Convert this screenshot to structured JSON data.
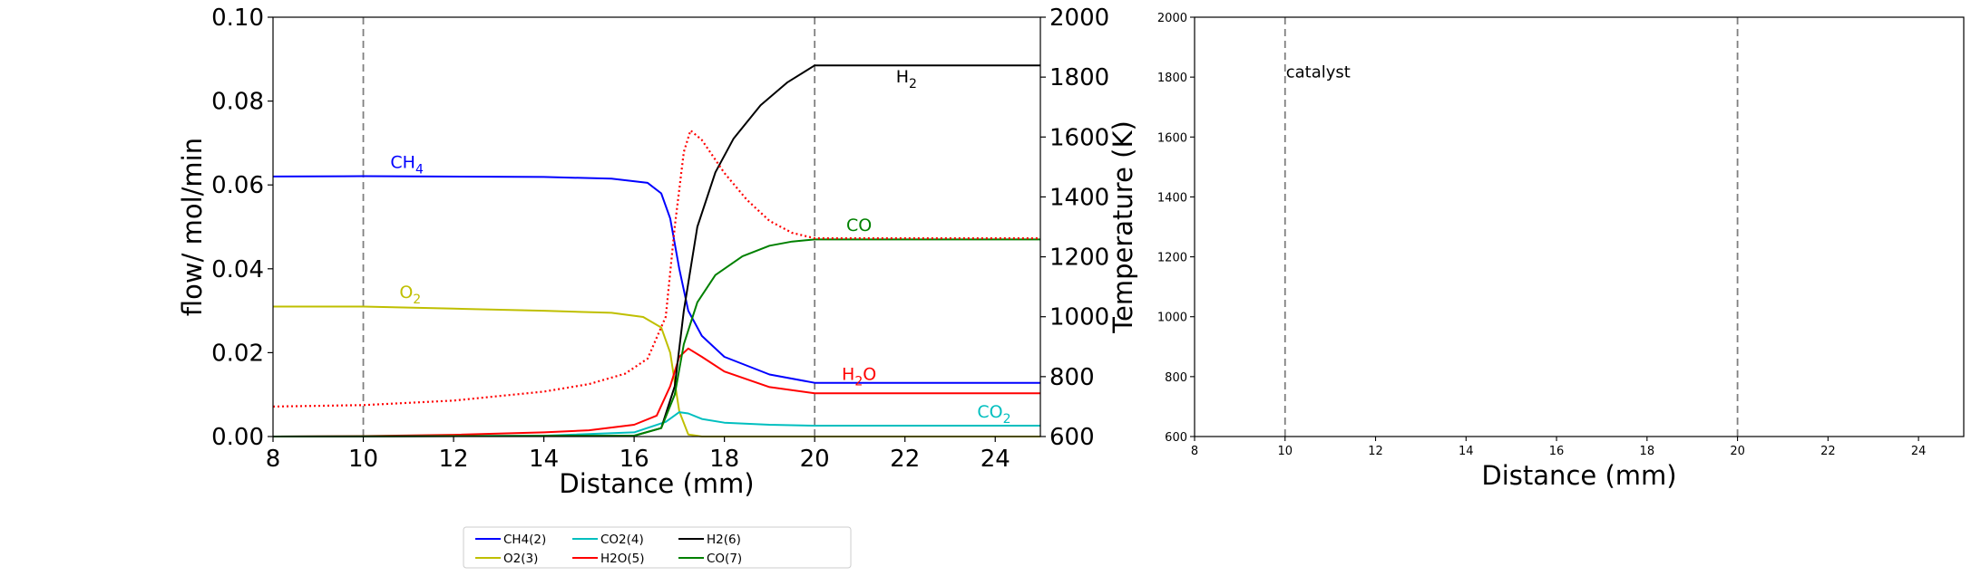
{
  "chart_data": [
    {
      "type": "line",
      "xlabel": "Distance (mm)",
      "ylabel": "flow/ mol/min",
      "y2label": "Temperature (K)",
      "xlim": [
        8,
        25
      ],
      "ylim": [
        0,
        0.1
      ],
      "y2lim": [
        600,
        2000
      ],
      "xticks": [
        "8",
        "10",
        "12",
        "14",
        "16",
        "18",
        "20",
        "22",
        "24"
      ],
      "yticks": [
        "0.00",
        "0.02",
        "0.04",
        "0.06",
        "0.08",
        "0.10"
      ],
      "y2ticks": [
        "600",
        "800",
        "1000",
        "1200",
        "1400",
        "1600",
        "1800",
        "2000"
      ],
      "vlines": [
        10,
        20
      ],
      "series": [
        {
          "name": "CH4(2)",
          "color": "#0000ff",
          "x": [
            8,
            10,
            14,
            15.5,
            16.3,
            16.6,
            16.8,
            17.0,
            17.2,
            17.5,
            18,
            19,
            20,
            25
          ],
          "y": [
            0.062,
            0.0621,
            0.0619,
            0.0615,
            0.0605,
            0.058,
            0.052,
            0.04,
            0.03,
            0.024,
            0.019,
            0.0148,
            0.0128,
            0.0128
          ]
        },
        {
          "name": "O2(3)",
          "color": "#bfbf00",
          "x": [
            8,
            10,
            12,
            14,
            15.5,
            16.2,
            16.6,
            16.8,
            17.0,
            17.2,
            17.5,
            25
          ],
          "y": [
            0.031,
            0.031,
            0.0305,
            0.03,
            0.0295,
            0.0285,
            0.026,
            0.02,
            0.006,
            0.0005,
            0.0,
            0.0
          ]
        },
        {
          "name": "CO2(4)",
          "color": "#00bfbf",
          "x": [
            8,
            14,
            16,
            16.7,
            17.0,
            17.2,
            17.5,
            18,
            19,
            20,
            25
          ],
          "y": [
            0.0,
            0.0002,
            0.001,
            0.0035,
            0.0058,
            0.0055,
            0.0042,
            0.0033,
            0.0028,
            0.0026,
            0.0026
          ]
        },
        {
          "name": "H2O(5)",
          "color": "#ff0000",
          "x": [
            8,
            10,
            12,
            14,
            15,
            16,
            16.5,
            16.8,
            17.0,
            17.2,
            17.5,
            18,
            19,
            20,
            25
          ],
          "y": [
            0.0,
            0.0001,
            0.0004,
            0.001,
            0.0015,
            0.0028,
            0.005,
            0.012,
            0.019,
            0.021,
            0.019,
            0.0155,
            0.0118,
            0.0103,
            0.0103
          ]
        },
        {
          "name": "H2(6)",
          "color": "#000000",
          "x": [
            8,
            16,
            16.6,
            16.9,
            17.1,
            17.4,
            17.8,
            18.2,
            18.8,
            19.4,
            20,
            25
          ],
          "y": [
            0.0,
            0.0002,
            0.002,
            0.012,
            0.03,
            0.05,
            0.063,
            0.071,
            0.079,
            0.0845,
            0.0885,
            0.0885
          ]
        },
        {
          "name": "CO(7)",
          "color": "#008000",
          "x": [
            8,
            16,
            16.6,
            16.9,
            17.1,
            17.4,
            17.8,
            18.4,
            19.0,
            19.5,
            20,
            25
          ],
          "y": [
            0.0,
            0.0002,
            0.002,
            0.01,
            0.022,
            0.032,
            0.0385,
            0.043,
            0.0455,
            0.0465,
            0.047,
            0.047
          ]
        }
      ],
      "temperature_series": {
        "color": "#ff0000",
        "style": "dotted",
        "x": [
          8,
          10,
          12,
          14,
          15,
          15.8,
          16.3,
          16.7,
          16.9,
          17.1,
          17.25,
          17.5,
          18,
          18.5,
          19,
          19.5,
          20,
          25
        ],
        "y": [
          700,
          705,
          720,
          750,
          775,
          810,
          860,
          1000,
          1300,
          1550,
          1622,
          1590,
          1480,
          1390,
          1320,
          1280,
          1262,
          1262
        ]
      },
      "annotations": [
        {
          "base": "CH",
          "sub": "4",
          "x": 10.6,
          "y": 0.064,
          "color": "#0000ff"
        },
        {
          "base": "O",
          "sub": "2",
          "x": 10.8,
          "y": 0.033,
          "color": "#bfbf00"
        },
        {
          "base": "H",
          "sub": "2",
          "x": 21.8,
          "y": 0.0845,
          "color": "#000000"
        },
        {
          "base": "CO",
          "sub": "",
          "x": 20.7,
          "y": 0.049,
          "color": "#008000"
        },
        {
          "base": "H",
          "sub": "2",
          "tail": "O",
          "x": 20.6,
          "y": 0.0135,
          "color": "#ff0000"
        },
        {
          "base": "CO",
          "sub": "2",
          "x": 23.6,
          "y": 0.0045,
          "color": "#00bfbf"
        }
      ]
    },
    {
      "type": "line",
      "xlabel": "Distance (mm)",
      "xlim": [
        8,
        25
      ],
      "ylim": [
        600,
        2000
      ],
      "xticks": [
        "8",
        "10",
        "12",
        "14",
        "16",
        "18",
        "20",
        "22",
        "24"
      ],
      "yticks": [
        "600",
        "800",
        "1000",
        "1200",
        "1400",
        "1600",
        "1800",
        "2000"
      ],
      "vlines": [
        10,
        20
      ],
      "annotation": "catalyst",
      "series": []
    }
  ],
  "legend": {
    "placement": "bottom-center",
    "items": [
      {
        "label": "CH4(2)",
        "color": "#0000ff"
      },
      {
        "label": "O2(3)",
        "color": "#bfbf00"
      },
      {
        "label": "CO2(4)",
        "color": "#00bfbf"
      },
      {
        "label": "H2O(5)",
        "color": "#ff0000"
      },
      {
        "label": "H2(6)",
        "color": "#000000"
      },
      {
        "label": "CO(7)",
        "color": "#008000"
      }
    ]
  }
}
